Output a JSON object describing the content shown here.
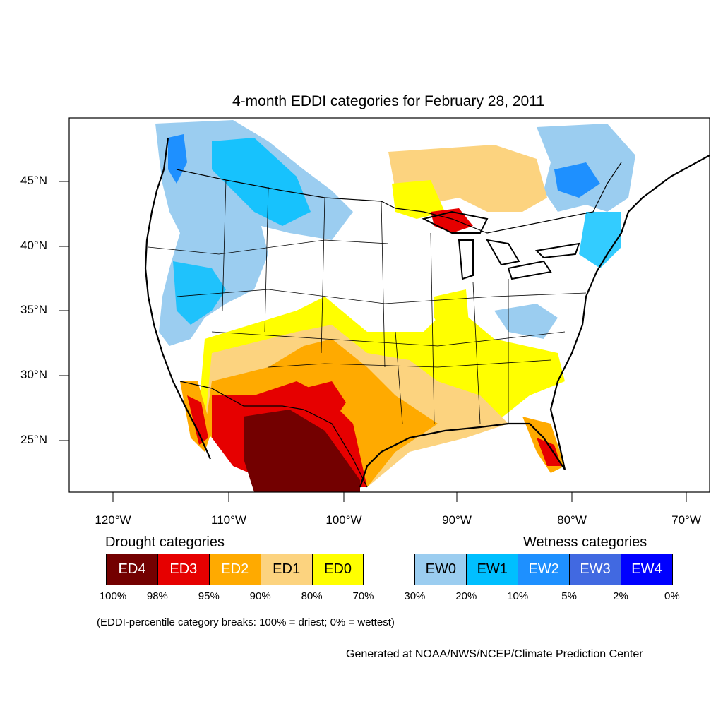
{
  "title": "4-month EDDI categories for February 28, 2011",
  "map": {
    "lat_labels": [
      "45°N",
      "40°N",
      "35°N",
      "30°N",
      "25°N"
    ],
    "lon_labels": [
      "120°W",
      "110°W",
      "100°W",
      "90°W",
      "80°W",
      "70°W"
    ]
  },
  "legend": {
    "drought_heading": "Drought categories",
    "wetness_heading": "Wetness categories",
    "categories": [
      {
        "label": "ED4",
        "color": "#730000",
        "text_color": "#ffffff"
      },
      {
        "label": "ED3",
        "color": "#e60000",
        "text_color": "#ffffff"
      },
      {
        "label": "ED2",
        "color": "#ffaa00",
        "text_color": "#ffffff"
      },
      {
        "label": "ED1",
        "color": "#fcd37f",
        "text_color": "#000000"
      },
      {
        "label": "ED0",
        "color": "#ffff00",
        "text_color": "#000000"
      },
      {
        "label": "",
        "color": "#ffffff",
        "text_color": "#000000"
      },
      {
        "label": "EW0",
        "color": "#9bcdf0",
        "text_color": "#000000"
      },
      {
        "label": "EW1",
        "color": "#00bfff",
        "text_color": "#000000"
      },
      {
        "label": "EW2",
        "color": "#1e90ff",
        "text_color": "#ffffff"
      },
      {
        "label": "EW3",
        "color": "#4169e1",
        "text_color": "#ffffff"
      },
      {
        "label": "EW4",
        "color": "#0000ff",
        "text_color": "#ffffff"
      }
    ],
    "breaks": [
      "100%",
      "98%",
      "95%",
      "90%",
      "80%",
      "70%",
      "30%",
      "20%",
      "10%",
      "5%",
      "2%",
      "0%"
    ]
  },
  "note": "(EDDI-percentile category breaks: 100% = driest; 0% = wettest)",
  "credit": "Generated at NOAA/NWS/NCEP/Climate Prediction Center"
}
